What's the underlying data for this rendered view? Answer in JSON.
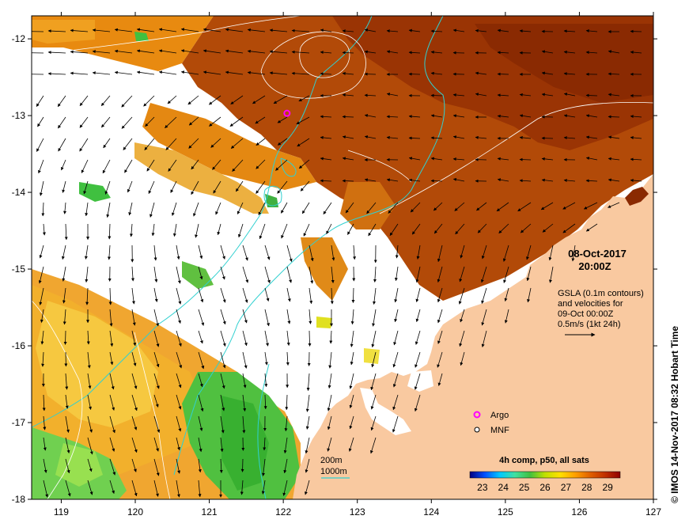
{
  "map": {
    "lon_range": [
      118.6,
      127
    ],
    "lat_range": [
      -18,
      -11.7
    ],
    "x_ticks": [
      119,
      120,
      121,
      122,
      123,
      124,
      125,
      126,
      127
    ],
    "y_ticks": [
      -12,
      -13,
      -14,
      -15,
      -16,
      -17,
      -18
    ],
    "x_tick_labels": [
      "119",
      "120",
      "121",
      "122",
      "123",
      "124",
      "125",
      "126",
      "127"
    ],
    "y_tick_labels": [
      "-12",
      "-13",
      "-14",
      "-15",
      "-16",
      "-17",
      "-18"
    ],
    "land_color": "#f9c9a0",
    "cloud_color": "#ffffff",
    "isobath_color": "#30d0d0",
    "contour_color": "#ffffff"
  },
  "annotations": {
    "date": "08-Oct-2017",
    "time": "20:00Z",
    "gsla_line1": "GSLA (0.1m contours)",
    "gsla_line2": "and velocities for",
    "gsla_line3": "09-Oct 00:00Z",
    "scale_text": "0.5m/s (1kt 24h)",
    "depth_200": "200m",
    "depth_1000": "1000m",
    "credit": "© IMOS 14-Nov-2017 08:32 Hobart Time"
  },
  "legend": {
    "argo_label": "Argo",
    "mnf_label": "MNF",
    "argo_color": "#ff00ff",
    "colorbar_title": "4h comp, p50, all sats",
    "colorbar_ticks": [
      "23",
      "24",
      "25",
      "26",
      "27",
      "28",
      "29"
    ],
    "colorbar_range": [
      22.4,
      29.6
    ],
    "colorbar_colors": [
      "#000080",
      "#0050ff",
      "#00c8ff",
      "#40e0a0",
      "#40c040",
      "#c0e000",
      "#ffe000",
      "#ffa000",
      "#e06000",
      "#c03000",
      "#900000"
    ]
  },
  "argo_float": {
    "lon": 122.05,
    "lat": -12.97
  }
}
